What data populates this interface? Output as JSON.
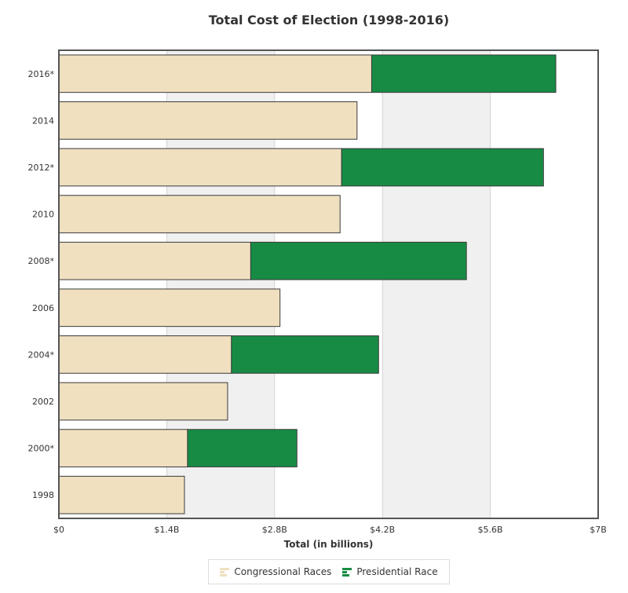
{
  "chart_data": {
    "type": "bar",
    "orientation": "horizontal",
    "stacked": true,
    "title": "Total Cost of Election (1998-2016)",
    "xlabel": "Total (in billions)",
    "ylabel": "",
    "xlim": [
      0,
      7
    ],
    "x_ticks": [
      {
        "value": 0,
        "label": "$0"
      },
      {
        "value": 1.4,
        "label": "$1.4B"
      },
      {
        "value": 2.8,
        "label": "$2.8B"
      },
      {
        "value": 4.2,
        "label": "$4.2B"
      },
      {
        "value": 5.6,
        "label": "$5.6B"
      },
      {
        "value": 7,
        "label": "$7B"
      }
    ],
    "categories": [
      "2016*",
      "2014",
      "2012*",
      "2010",
      "2008*",
      "2006",
      "2004*",
      "2002",
      "2000*",
      "1998"
    ],
    "series": [
      {
        "name": "Congressional Races",
        "color": "#f0e0c0",
        "values": [
          4.06,
          3.87,
          3.67,
          3.65,
          2.49,
          2.87,
          2.24,
          2.19,
          1.67,
          1.63
        ]
      },
      {
        "name": "Presidential Race",
        "color": "#178b44",
        "values": [
          2.39,
          0,
          2.62,
          0,
          2.8,
          0,
          1.91,
          0,
          1.42,
          0
        ]
      }
    ],
    "grid": "alternating vertical bands",
    "legend": "bottom-center"
  }
}
